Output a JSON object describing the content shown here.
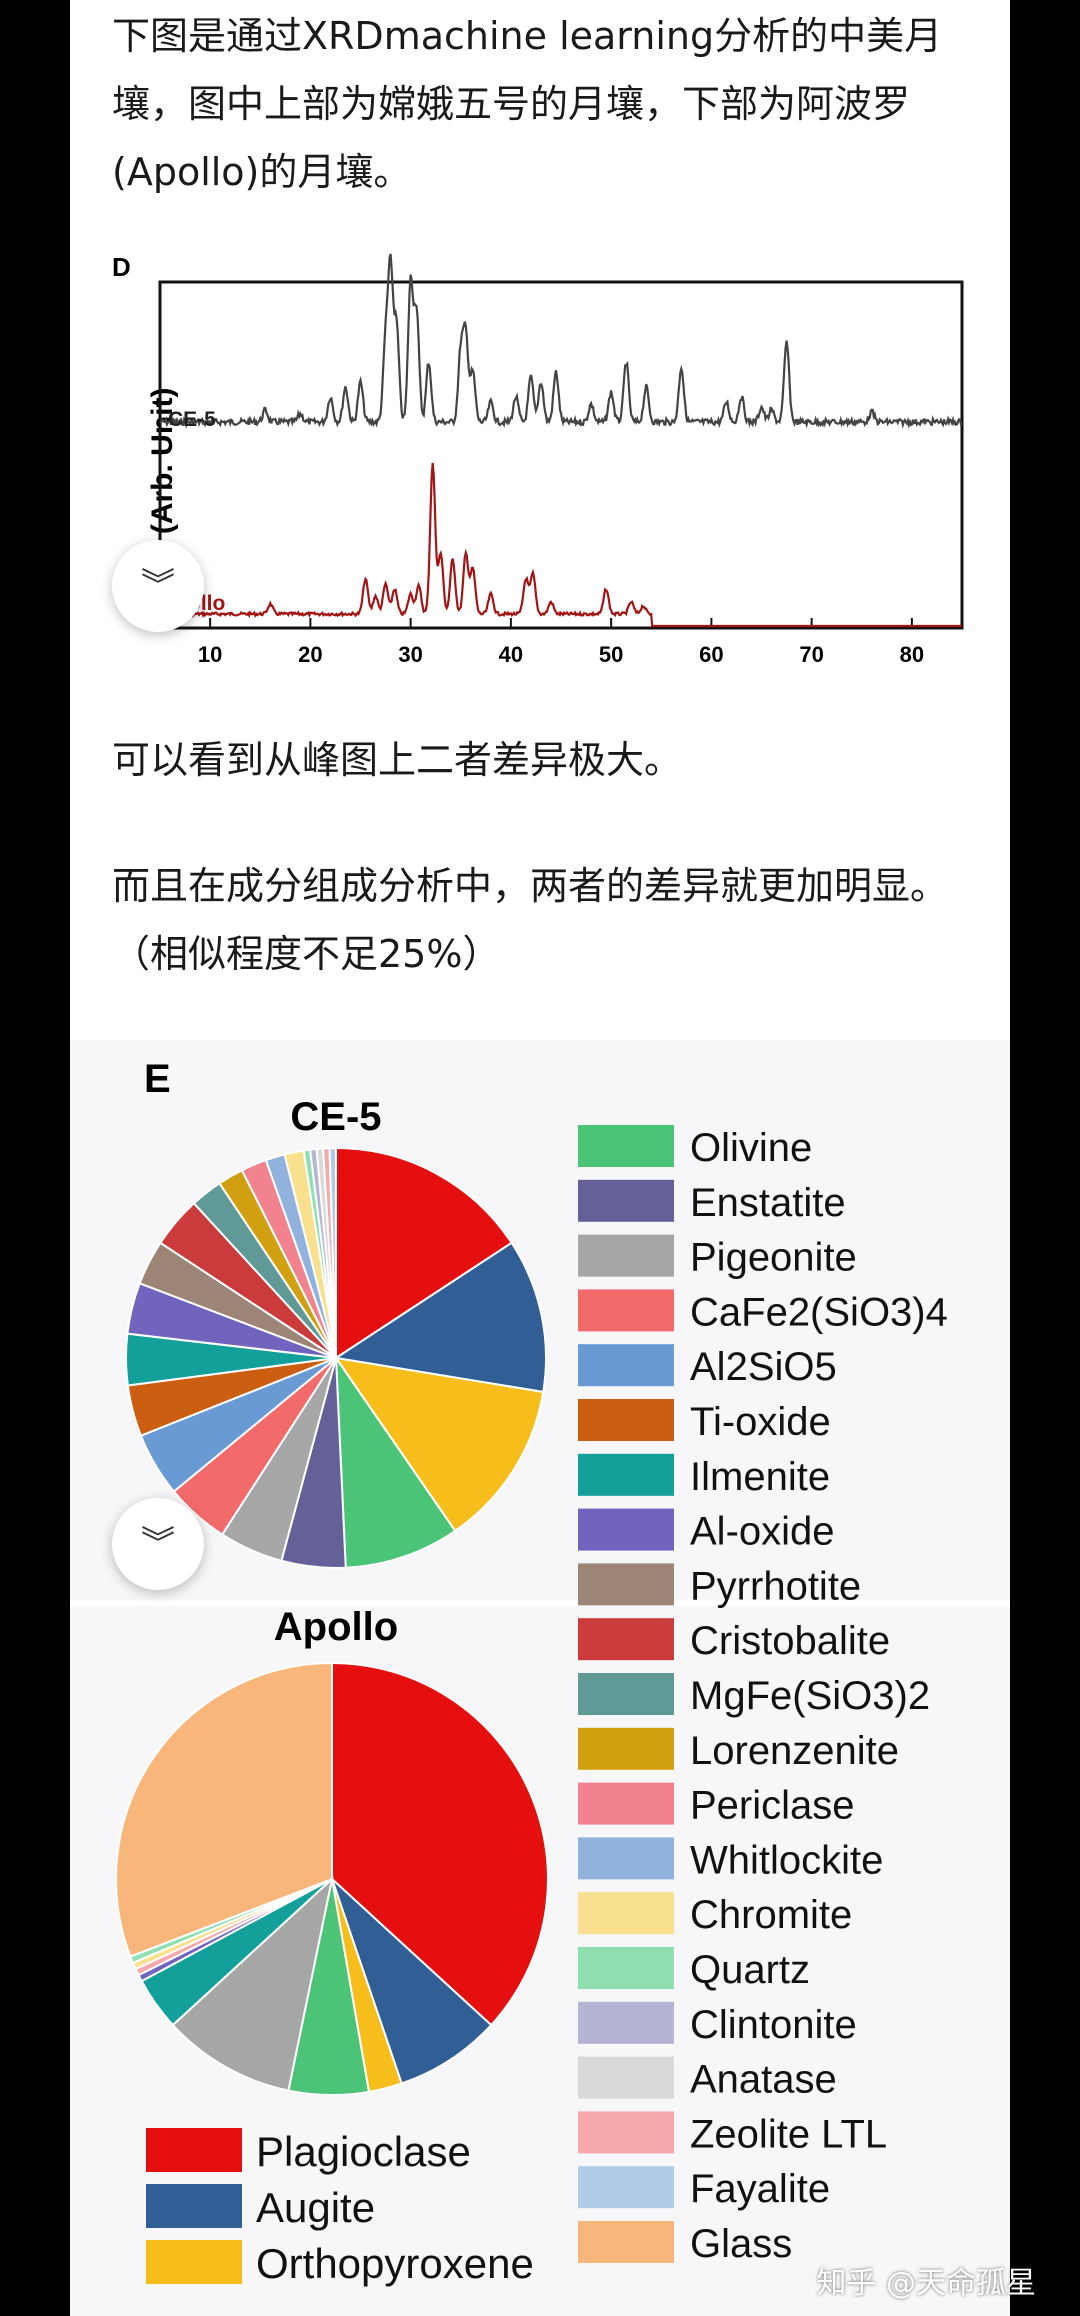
{
  "paragraphs": {
    "p1": "下图是通过XRDmachine learning分析的中美月壤，图中上部为嫦娥五号的月壤，下部为阿波罗(Apollo)的月壤。",
    "p2": "可以看到从峰图上二者差异极大。",
    "p3": "而且在成分组成分析中，两者的差异就更加明显。（相似程度不足25%）"
  },
  "figure_d": {
    "panel_label": "D",
    "ylabel": "nsity (Arb. Unit)",
    "x_ticks": [
      "10",
      "20",
      "30",
      "40",
      "50",
      "60",
      "70",
      "80"
    ],
    "series_labels": {
      "ce5": "CE-5",
      "apollo": "ollo"
    },
    "colors": {
      "ce5": "#444444",
      "apollo": "#a31515"
    }
  },
  "figure_e": {
    "panel_label": "E",
    "ce5_title": "CE-5",
    "apollo_title": "Apollo",
    "legend_right": [
      {
        "name": "Olivine",
        "color": "#4cc478"
      },
      {
        "name": "Enstatite",
        "color": "#646199"
      },
      {
        "name": "Pigeonite",
        "color": "#a6a6a6"
      },
      {
        "name": "CaFe2(SiO3)4",
        "color": "#f26a6a"
      },
      {
        "name": "Al2SiO5",
        "color": "#6a9ad4"
      },
      {
        "name": "Ti-oxide",
        "color": "#cc5e12"
      },
      {
        "name": "Ilmenite",
        "color": "#13a09a"
      },
      {
        "name": "Al-oxide",
        "color": "#7164bf"
      },
      {
        "name": "Pyrrhotite",
        "color": "#9c8577"
      },
      {
        "name": "Cristobalite",
        "color": "#cc3b3b"
      },
      {
        "name": "MgFe(SiO3)2",
        "color": "#5f9a96"
      },
      {
        "name": "Lorenzenite",
        "color": "#d1a010"
      },
      {
        "name": "Periclase",
        "color": "#f2838e"
      },
      {
        "name": "Whitlockite",
        "color": "#90b2dc"
      },
      {
        "name": "Chromite",
        "color": "#f8e08e"
      },
      {
        "name": "Quartz",
        "color": "#8fe0b0"
      },
      {
        "name": "Clintonite",
        "color": "#b4b4d4"
      },
      {
        "name": "Anatase",
        "color": "#d9d9d9"
      },
      {
        "name": "Zeolite LTL",
        "color": "#f7a8ab"
      },
      {
        "name": "Fayalite",
        "color": "#b0cce8"
      },
      {
        "name": "Glass",
        "color": "#f8b67a"
      }
    ],
    "legend_bottom": [
      {
        "name": "Plagioclase",
        "color": "#e60f0f"
      },
      {
        "name": "Augite",
        "color": "#315e94"
      },
      {
        "name": "Orthopyroxene",
        "color": "#f7bd1a"
      }
    ]
  },
  "chart_data": [
    {
      "type": "pie",
      "title": "CE-5",
      "labels": [
        "Plagioclase",
        "Augite",
        "Orthopyroxene",
        "Olivine",
        "Enstatite",
        "Pigeonite",
        "CaFe2(SiO3)4",
        "Al2SiO5",
        "Ti-oxide",
        "Ilmenite",
        "Al-oxide",
        "Pyrrhotite",
        "Cristobalite",
        "MgFe(SiO3)2",
        "Lorenzenite",
        "Periclase",
        "Whitlockite",
        "Chromite",
        "Quartz",
        "Clintonite",
        "Anatase",
        "Zeolite LTL",
        "Fayalite"
      ],
      "values": [
        16,
        12,
        13,
        9,
        5,
        5,
        5,
        5,
        4,
        4,
        4,
        3.5,
        4,
        2.5,
        2,
        2,
        1.5,
        1.5,
        0.5,
        0.5,
        0.5,
        0.5,
        0.5
      ]
    },
    {
      "type": "pie",
      "title": "Apollo",
      "labels": [
        "Plagioclase",
        "Augite",
        "Orthopyroxene",
        "Olivine",
        "Pigeonite",
        "Ilmenite",
        "Al-oxide",
        "Zeolite LTL",
        "Chromite",
        "Quartz",
        "Glass"
      ],
      "values": [
        37,
        8,
        2.5,
        6,
        10,
        4,
        0.5,
        0.5,
        0.5,
        0.5,
        31
      ]
    }
  ]
}
